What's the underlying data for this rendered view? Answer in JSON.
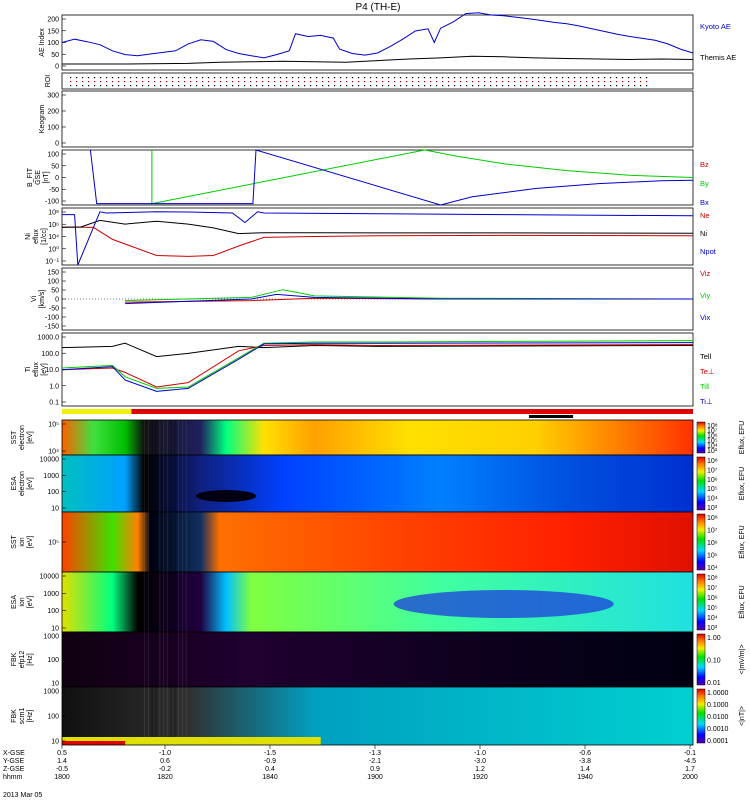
{
  "figure": {
    "title": "P4 (TH-E)",
    "date_label": "2013 Mar 05",
    "x_axis": {
      "row_labels": [
        "X-GSE",
        "Y-GSE",
        "Z-GSE",
        "hhmm"
      ],
      "ticks": [
        [
          "0.5",
          "1.4",
          "-0.5",
          "1800"
        ],
        [
          "-1.0",
          "0.6",
          "-0.2",
          "1820"
        ],
        [
          "-1.5",
          "-0.9",
          "0.4",
          "1840"
        ],
        [
          "-1.3",
          "-2.1",
          "0.9",
          "1900"
        ],
        [
          "-1.0",
          "-3.0",
          "1.2",
          "1920"
        ],
        [
          "-0.6",
          "-3.8",
          "1.4",
          "1940"
        ],
        [
          "-0.1",
          "-4.5",
          "1.7",
          "2000"
        ]
      ]
    }
  },
  "chart_data": [
    {
      "type": "line",
      "panel": "ae",
      "ylabel": "AE Index",
      "ylim": [
        0,
        200
      ],
      "yticks": [
        "200",
        "150",
        "100",
        "50",
        "0"
      ],
      "x_unit": "minutes since 1800 UT",
      "series": [
        {
          "name": "Kyoto AE",
          "color": "#0000cc",
          "x": [
            0,
            4,
            8,
            12,
            16,
            20,
            24,
            28,
            32,
            36,
            40,
            44,
            48,
            52,
            56,
            60,
            64,
            68,
            72,
            74,
            78,
            82,
            86,
            88,
            92,
            96,
            100,
            104,
            108,
            112,
            116,
            118,
            120,
            124,
            128,
            132,
            136,
            140,
            144,
            148,
            152,
            156,
            160,
            164,
            168,
            172,
            176,
            180,
            184,
            188,
            192,
            196,
            200
          ],
          "y": [
            100,
            112,
            103,
            92,
            70,
            56,
            52,
            58,
            64,
            70,
            95,
            110,
            104,
            74,
            60,
            52,
            44,
            56,
            70,
            132,
            122,
            126,
            116,
            76,
            60,
            54,
            62,
            85,
            112,
            142,
            150,
            100,
            152,
            175,
            205,
            208,
            200,
            197,
            192,
            186,
            180,
            173,
            168,
            160,
            150,
            140,
            130,
            122,
            115,
            108,
            95,
            76,
            62
          ]
        },
        {
          "name": "Themis AE",
          "color": "#000000",
          "x": [
            0,
            20,
            40,
            50,
            60,
            70,
            80,
            90,
            100,
            110,
            120,
            130,
            140,
            150,
            160,
            170,
            180,
            190,
            200
          ],
          "y": [
            22,
            22,
            24,
            28,
            30,
            32,
            30,
            28,
            34,
            40,
            44,
            50,
            48,
            44,
            42,
            40,
            38,
            40,
            38
          ]
        }
      ]
    },
    {
      "type": "scatter",
      "panel": "roi",
      "ylabel": "ROI"
    },
    {
      "type": "scatter",
      "panel": "keogram",
      "ylabel": "Keogram",
      "ylim": [
        0,
        300
      ],
      "yticks": [
        "300",
        "200",
        "100",
        "0"
      ]
    },
    {
      "type": "line",
      "panel": "bfit",
      "ylabel": "B_FIT\nGSE\n[nT]",
      "ylim": [
        -100,
        100
      ],
      "yticks": [
        "100",
        "50",
        "0",
        "-50",
        "-100"
      ],
      "series": [
        {
          "name": "Bz",
          "color": "#cc0000",
          "x": [],
          "y": []
        },
        {
          "name": "By",
          "color": "#00cc00",
          "x": [
            28.5,
            28.5,
            115,
            125,
            140,
            160,
            180,
            200
          ],
          "y": [
            100,
            -95,
            100,
            78,
            50,
            25,
            8,
            0
          ]
        },
        {
          "name": "Bx",
          "color": "#0000cc",
          "x": [
            9,
            11,
            60.5,
            61.5,
            120,
            130,
            150,
            170,
            190,
            200
          ],
          "y": [
            100,
            -95,
            -95,
            100,
            -100,
            -70,
            -40,
            -22,
            -12,
            -10
          ]
        }
      ]
    },
    {
      "type": "line",
      "panel": "density",
      "ylabel": "Ni\neflux\n[1/cc]",
      "yscale": "log",
      "ylim": [
        0.0001,
        100
      ],
      "yticks": [
        "10⁸",
        "10⁶",
        "10⁴",
        "10⁰",
        "10⁻¹"
      ],
      "series": [
        {
          "name": "Ne",
          "color": "#cc0000",
          "x": [
            0,
            10,
            16,
            30,
            40,
            48,
            56,
            64,
            80,
            100,
            140,
            200
          ],
          "y": [
            1,
            0.9,
            0.05,
            0.001,
            0.0008,
            0.001,
            0.01,
            0.08,
            0.1,
            0.12,
            0.13,
            0.12
          ]
        },
        {
          "name": "Ni",
          "color": "#000000",
          "x": [
            0,
            6,
            12,
            20,
            30,
            40,
            48,
            56,
            64,
            80,
            100,
            140,
            200
          ],
          "y": [
            0.9,
            1,
            5,
            2,
            4,
            2,
            0.8,
            0.2,
            0.25,
            0.25,
            0.24,
            0.24,
            0.22
          ]
        },
        {
          "name": "Npot",
          "color": "#0000cc",
          "x": [
            0,
            4,
            5,
            12,
            14,
            30,
            40,
            54,
            58,
            62,
            64,
            100,
            140,
            200
          ],
          "y": [
            20,
            20,
            0.0001,
            40,
            30,
            40,
            38,
            30,
            3,
            40,
            30,
            25,
            20,
            15
          ]
        }
      ]
    },
    {
      "type": "line",
      "panel": "velocity",
      "ylabel": "Vi\n[km/s]",
      "ylim": [
        -200,
        200
      ],
      "yticks": [
        "150",
        "100",
        "50",
        "0",
        "-50",
        "-100",
        "-150"
      ],
      "series": [
        {
          "name": "Viz",
          "color": "#cc0000",
          "x": [
            20,
            60,
            80,
            120,
            200
          ],
          "y": [
            -20,
            -10,
            5,
            0,
            0
          ]
        },
        {
          "name": "Viy",
          "color": "#00cc00",
          "x": [
            20,
            60,
            70,
            80,
            120,
            200
          ],
          "y": [
            -10,
            10,
            60,
            20,
            5,
            0
          ]
        },
        {
          "name": "Vix",
          "color": "#0000cc",
          "x": [
            20,
            60,
            68,
            80,
            120,
            200
          ],
          "y": [
            -30,
            0,
            30,
            10,
            0,
            0
          ]
        }
      ]
    },
    {
      "type": "line",
      "panel": "temperature",
      "ylabel": "Ti\neflux\n[eV]",
      "yscale": "log",
      "ylim": [
        0.05,
        5000
      ],
      "yticks": [
        "1000.0",
        "100.0",
        "10.0",
        "1.0",
        "0.1"
      ],
      "series": [
        {
          "name": "Tell",
          "color": "#000000",
          "x": [
            0,
            16,
            20,
            30,
            40,
            56,
            64,
            80,
            100,
            200
          ],
          "y": [
            500,
            600,
            1000,
            120,
            200,
            600,
            500,
            700,
            600,
            700
          ]
        },
        {
          "name": "Te⊥",
          "color": "#cc0000",
          "x": [
            0,
            16,
            20,
            30,
            40,
            56,
            64,
            80,
            100,
            200
          ],
          "y": [
            15,
            20,
            10,
            1,
            2,
            300,
            700,
            800,
            700,
            800
          ]
        },
        {
          "name": "Ti‖",
          "color": "#00cc00",
          "x": [
            0,
            16,
            20,
            30,
            40,
            56,
            64,
            80,
            100,
            200
          ],
          "y": [
            20,
            30,
            5,
            0.8,
            1,
            100,
            1000,
            1200,
            1200,
            1500
          ]
        },
        {
          "name": "Ti⊥",
          "color": "#0000cc",
          "x": [
            0,
            16,
            20,
            30,
            40,
            56,
            64,
            80,
            100,
            200
          ],
          "y": [
            15,
            25,
            3,
            0.5,
            0.8,
            80,
            900,
            1000,
            1000,
            1100
          ]
        }
      ]
    },
    {
      "type": "heatmap",
      "panel": "sst_e",
      "ylabel": "SST\nelectron\n[eV]",
      "yticks": [
        "10⁵",
        "10⁴"
      ],
      "colorbar_label": "Eflux, EFU",
      "colorbar_ticks": [
        "10⁸",
        "10⁷",
        "10⁶",
        "10⁵",
        "10⁴",
        "10³"
      ]
    },
    {
      "type": "heatmap",
      "panel": "esa_e",
      "ylabel": "ESA\nelectron\n[eV]",
      "yticks": [
        "10000",
        "1000",
        "100",
        "10"
      ],
      "colorbar_label": "Eflux, EFU",
      "colorbar_ticks": [
        "10⁸",
        "10⁷",
        "10⁶",
        "10⁵",
        "10⁴",
        "10³"
      ]
    },
    {
      "type": "heatmap",
      "panel": "sst_i",
      "ylabel": "SST\nion\n[eV]",
      "yticks": [
        "10⁵"
      ],
      "colorbar_label": "Eflux, EFU",
      "colorbar_ticks": [
        "10⁸",
        "10⁷",
        "10⁶",
        "10⁵",
        "10⁴"
      ]
    },
    {
      "type": "heatmap",
      "panel": "esa_i",
      "ylabel": "ESA\nion\n[eV]",
      "yticks": [
        "10000",
        "1000",
        "100",
        "10"
      ],
      "colorbar_label": "Eflux, EFU",
      "colorbar_ticks": [
        "10⁸",
        "10⁷",
        "10⁶",
        "10⁵",
        "10⁴",
        "10³"
      ]
    },
    {
      "type": "heatmap",
      "panel": "fbk_e",
      "ylabel": "FBK\nefp12\n[Hz]",
      "yticks": [
        "1000",
        "100",
        "10"
      ],
      "colorbar_label": "<|mV/m|>",
      "colorbar_ticks": [
        "1.00",
        "0.10",
        "0.01"
      ]
    },
    {
      "type": "heatmap",
      "panel": "fbk_b",
      "ylabel": "FBK\nscm1\n[Hz]",
      "yticks": [
        "1000",
        "100",
        "10"
      ],
      "colorbar_label": "<|nT|>",
      "colorbar_ticks": [
        "1.0000",
        "0.1000",
        "0.0100",
        "0.0010",
        "0.0001"
      ]
    }
  ]
}
